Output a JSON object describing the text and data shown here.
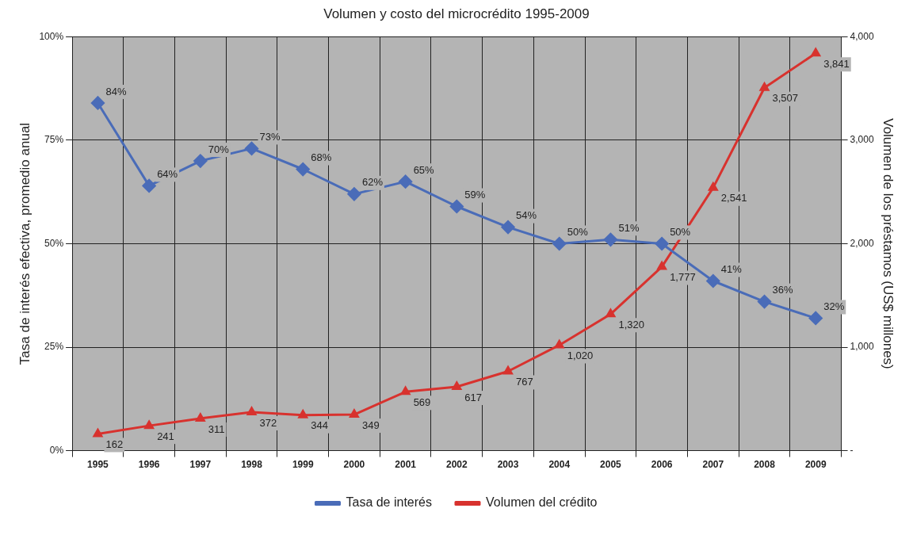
{
  "chart_data": {
    "type": "line",
    "title": "Volumen y costo del microcrédito 1995-2009",
    "ylabel": "Tasa de interés efectiva, promedio anual",
    "y2label": "Volumen de los préstamos (US$ millones)",
    "categories": [
      "1995",
      "1996",
      "1997",
      "1998",
      "1999",
      "2000",
      "2001",
      "2002",
      "2003",
      "2004",
      "2005",
      "2006",
      "2007",
      "2008",
      "2009"
    ],
    "series": [
      {
        "name": "Tasa de interés",
        "color": "#4a6cb8",
        "marker": "diamond",
        "values": [
          84,
          64,
          70,
          73,
          68,
          62,
          65,
          59,
          54,
          50,
          51,
          50,
          41,
          36,
          32
        ],
        "value_labels": [
          "84%",
          "64%",
          "70%",
          "73%",
          "68%",
          "62%",
          "65%",
          "59%",
          "54%",
          "50%",
          "51%",
          "50%",
          "41%",
          "36%",
          "32%"
        ]
      },
      {
        "name": "Volumen del crédito",
        "color": "#d8322e",
        "marker": "triangle",
        "axis": "y2",
        "values": [
          162,
          241,
          311,
          372,
          344,
          349,
          569,
          617,
          767,
          1020,
          1320,
          1777,
          2541,
          3507,
          3841
        ],
        "value_labels": [
          "162",
          "241",
          "311",
          "372",
          "344",
          "349",
          "569",
          "617",
          "767",
          "1,020",
          "1,320",
          "1,777",
          "2,541",
          "3,507",
          "3,841"
        ]
      }
    ],
    "ylim": [
      0,
      100
    ],
    "yticks": [
      {
        "value": 0,
        "label": "0%"
      },
      {
        "value": 25,
        "label": "25%"
      },
      {
        "value": 50,
        "label": "50%"
      },
      {
        "value": 75,
        "label": "75%"
      },
      {
        "value": 100,
        "label": "100%"
      }
    ],
    "y2lim": [
      0,
      4000
    ],
    "y2ticks": [
      {
        "value": 0,
        "label": "-"
      },
      {
        "value": 1000,
        "label": "1,000"
      },
      {
        "value": 2000,
        "label": "2,000"
      },
      {
        "value": 3000,
        "label": "3,000"
      },
      {
        "value": 4000,
        "label": "4,000"
      }
    ],
    "grid": true,
    "legend": "bottom"
  }
}
